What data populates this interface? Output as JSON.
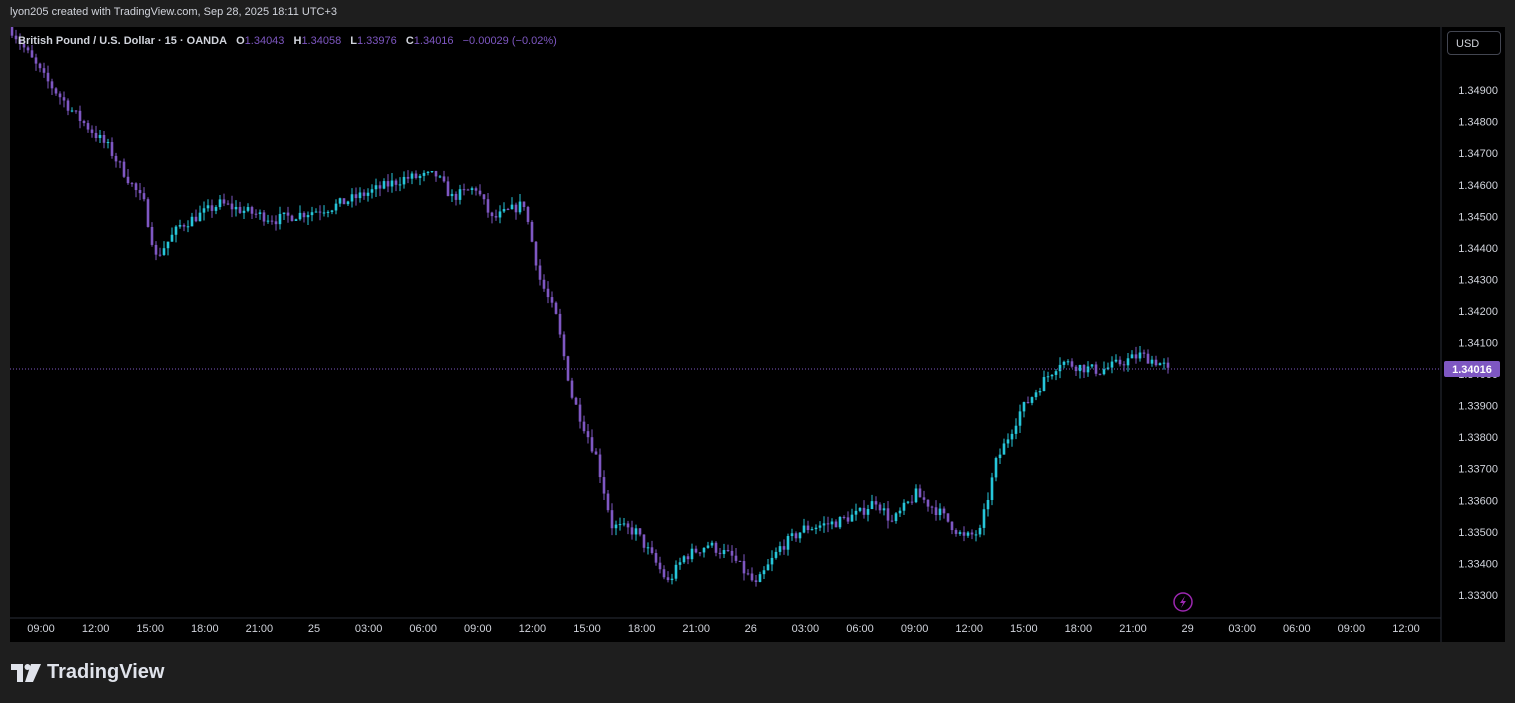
{
  "header": {
    "attribution": "lyon205 created with TradingView.com, Sep 28, 2025 18:11 UTC+3"
  },
  "legend": {
    "symbol": "British Pound / U.S. Dollar · 15 · OANDA",
    "o_key": "O",
    "o_val": "1.34043",
    "h_key": "H",
    "h_val": "1.34058",
    "l_key": "L",
    "l_val": "1.33976",
    "c_key": "C",
    "c_val": "1.34016",
    "change": "−0.00029 (−0.02%)"
  },
  "currency_button": "USD",
  "footer": {
    "logo_text": "TradingView"
  },
  "colors": {
    "up": "#26c6da",
    "down": "#7e57c2",
    "axis_text": "#d1d4dc",
    "price_tag_bg": "#7e57c2"
  },
  "icons": {
    "alert": "lightning-icon"
  },
  "chart_data": {
    "type": "candlestick",
    "instrument": "British Pound / U.S. Dollar",
    "interval": "15",
    "ylim": [
      1.3323,
      1.351
    ],
    "y_ticks": [
      "1.33300",
      "1.33400",
      "1.33500",
      "1.33600",
      "1.33700",
      "1.33800",
      "1.33900",
      "1.34000",
      "1.34100",
      "1.34200",
      "1.34300",
      "1.34400",
      "1.34500",
      "1.34600",
      "1.34700",
      "1.34800",
      "1.34900"
    ],
    "x_ticks": [
      "09:00",
      "12:00",
      "15:00",
      "18:00",
      "21:00",
      "25",
      "03:00",
      "06:00",
      "09:00",
      "12:00",
      "15:00",
      "18:00",
      "21:00",
      "26",
      "03:00",
      "06:00",
      "09:00",
      "12:00",
      "15:00",
      "18:00",
      "21:00",
      "29",
      "03:00",
      "06:00",
      "09:00",
      "12:00"
    ],
    "last_price": "1.34016",
    "grid": false,
    "close_path": [
      [
        0,
        1.3509
      ],
      [
        8,
        1.3494
      ],
      [
        16,
        1.3482
      ],
      [
        24,
        1.3472
      ],
      [
        33,
        1.3454
      ],
      [
        36,
        1.3437
      ],
      [
        42,
        1.3447
      ],
      [
        52,
        1.3454
      ],
      [
        60,
        1.3451
      ],
      [
        66,
        1.3449
      ],
      [
        80,
        1.3453
      ],
      [
        90,
        1.3458
      ],
      [
        98,
        1.3462
      ],
      [
        106,
        1.3463
      ],
      [
        110,
        1.3456
      ],
      [
        116,
        1.3459
      ],
      [
        120,
        1.3449
      ],
      [
        128,
        1.3454
      ],
      [
        132,
        1.343
      ],
      [
        136,
        1.3418
      ],
      [
        140,
        1.3393
      ],
      [
        146,
        1.3374
      ],
      [
        150,
        1.3352
      ],
      [
        156,
        1.335
      ],
      [
        160,
        1.3342
      ],
      [
        164,
        1.3334
      ],
      [
        168,
        1.3342
      ],
      [
        174,
        1.3346
      ],
      [
        180,
        1.3342
      ],
      [
        186,
        1.3333
      ],
      [
        192,
        1.3345
      ],
      [
        198,
        1.3351
      ],
      [
        206,
        1.3353
      ],
      [
        212,
        1.3356
      ],
      [
        216,
        1.336
      ],
      [
        220,
        1.3353
      ],
      [
        226,
        1.3362
      ],
      [
        232,
        1.3356
      ],
      [
        238,
        1.3348
      ],
      [
        242,
        1.335
      ],
      [
        246,
        1.3372
      ],
      [
        252,
        1.3388
      ],
      [
        258,
        1.3398
      ],
      [
        262,
        1.3404
      ],
      [
        268,
        1.3402
      ],
      [
        272,
        1.3401
      ],
      [
        276,
        1.3403
      ],
      [
        282,
        1.3406
      ],
      [
        286,
        1.3404
      ],
      [
        289,
        1.3402
      ]
    ]
  }
}
